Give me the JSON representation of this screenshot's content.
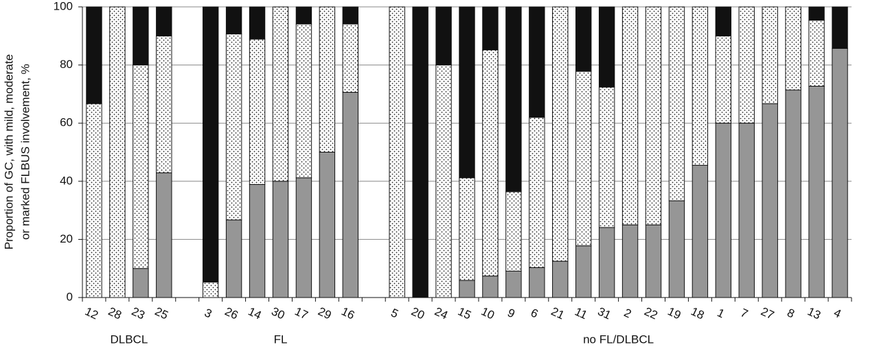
{
  "chart_data": {
    "type": "stacked-bar",
    "y_label": [
      "Proportion of GC, with mild, moderate",
      "or marked FLBUS involvement, %"
    ],
    "categories": [
      "12",
      "28",
      "23",
      "25",
      null,
      "3",
      "26",
      "14",
      "30",
      "17",
      "29",
      "16",
      null,
      "5",
      "20",
      "24",
      "15",
      "10",
      "9",
      "6",
      "21",
      "11",
      "31",
      "2",
      "22",
      "19",
      "18",
      "1",
      "7",
      "27",
      "8",
      "13",
      "4"
    ],
    "group_labels": [
      "DLBCL",
      "FL",
      "no FL/DLBCL"
    ],
    "series": [
      {
        "color": "#969696",
        "values": [
          0,
          0,
          10,
          42.9,
          null,
          0,
          26.7,
          38.9,
          40,
          41.2,
          50,
          70.6,
          null,
          0,
          0,
          0,
          5.9,
          7.4,
          9.1,
          10.3,
          12.5,
          17.8,
          24.1,
          25,
          25,
          33.3,
          45.5,
          60,
          60,
          66.7,
          71.4,
          72.7,
          85.7
        ]
      },
      {
        "color": "#ffffff",
        "pattern": "dots",
        "values": [
          66.7,
          100,
          70,
          47.1,
          null,
          5.3,
          64,
          50,
          60,
          52.9,
          50,
          23.5,
          null,
          100,
          0,
          80,
          35.3,
          77.8,
          27.3,
          51.7,
          87.5,
          60,
          48.3,
          75,
          75,
          66.7,
          54.5,
          30,
          40,
          33.3,
          28.6,
          22.7,
          0
        ]
      },
      {
        "color": "#111111",
        "values": [
          33.3,
          0,
          20,
          10,
          null,
          94.7,
          9.3,
          11.1,
          0,
          5.9,
          0,
          5.9,
          null,
          0,
          100,
          20,
          58.8,
          14.8,
          63.6,
          38,
          0,
          22.2,
          27.6,
          0,
          0,
          0,
          0,
          10,
          0,
          0,
          0,
          4.6,
          14.3
        ]
      }
    ],
    "ylim": [
      0,
      100
    ],
    "yticks": [
      0,
      20,
      40,
      60,
      80,
      100
    ],
    "grid": true
  }
}
